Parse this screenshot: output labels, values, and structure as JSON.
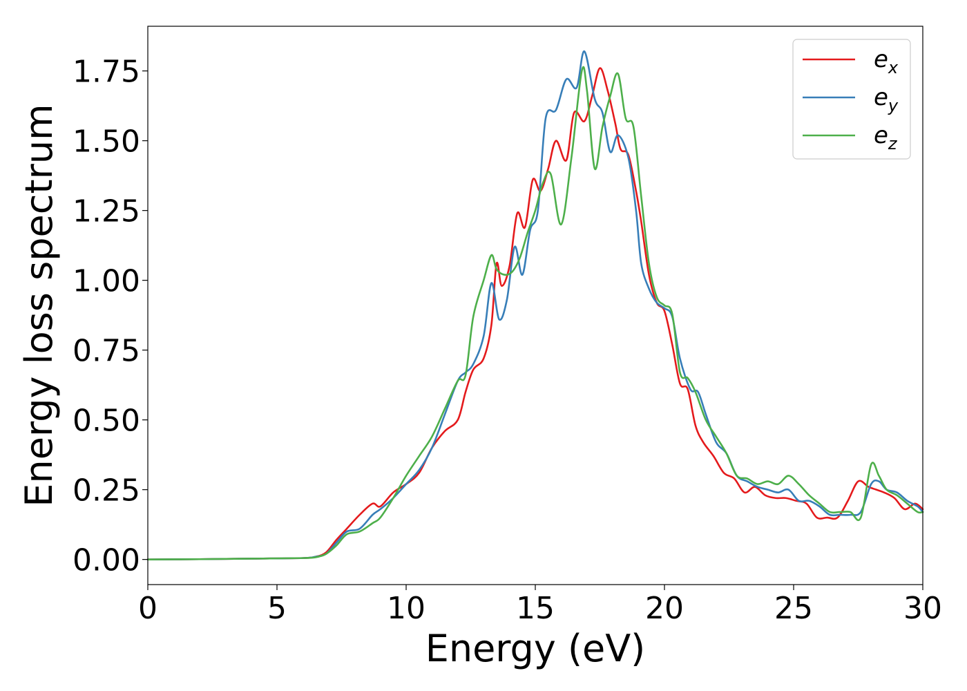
{
  "chart_data": {
    "type": "line",
    "title": "",
    "xlabel": "Energy (eV)",
    "ylabel": "Energy loss spectrum",
    "xlim": [
      0,
      30
    ],
    "ylim": [
      -0.09,
      1.91
    ],
    "xticks": [
      0,
      5,
      10,
      15,
      20,
      25,
      30
    ],
    "xtick_labels": [
      "0",
      "5",
      "10",
      "15",
      "20",
      "25",
      "30"
    ],
    "yticks": [
      0.0,
      0.25,
      0.5,
      0.75,
      1.0,
      1.25,
      1.5,
      1.75
    ],
    "ytick_labels": [
      "0.00",
      "0.25",
      "0.50",
      "0.75",
      "1.00",
      "1.25",
      "1.50",
      "1.75"
    ],
    "grid": false,
    "legend_position": "top-right",
    "series": [
      {
        "name": "x",
        "legend_base": "e",
        "legend_sub": "x",
        "color": "#e41a1c",
        "x": [
          0,
          2,
          4,
          6,
          6.5,
          6.9,
          7.3,
          7.7,
          8.2,
          8.7,
          9.0,
          9.5,
          10.0,
          10.5,
          11.0,
          11.5,
          12.0,
          12.3,
          12.6,
          13.0,
          13.3,
          13.5,
          13.7,
          14.0,
          14.3,
          14.6,
          14.9,
          15.2,
          15.5,
          15.8,
          16.2,
          16.5,
          16.9,
          17.2,
          17.5,
          17.8,
          18.1,
          18.3,
          18.6,
          18.9,
          19.1,
          19.4,
          19.7,
          20.0,
          20.3,
          20.6,
          20.9,
          21.2,
          21.5,
          21.9,
          22.3,
          22.7,
          23.1,
          23.5,
          23.9,
          24.3,
          24.7,
          25.1,
          25.5,
          25.9,
          26.3,
          26.7,
          27.1,
          27.5,
          27.9,
          28.2,
          28.5,
          28.9,
          29.3,
          29.7,
          30.0
        ],
        "values": [
          0,
          0.001,
          0.003,
          0.005,
          0.01,
          0.025,
          0.07,
          0.11,
          0.16,
          0.2,
          0.19,
          0.24,
          0.27,
          0.31,
          0.4,
          0.46,
          0.5,
          0.6,
          0.68,
          0.72,
          0.84,
          1.06,
          0.98,
          1.05,
          1.24,
          1.19,
          1.36,
          1.32,
          1.4,
          1.5,
          1.43,
          1.6,
          1.57,
          1.66,
          1.76,
          1.68,
          1.56,
          1.47,
          1.45,
          1.32,
          1.21,
          1.02,
          0.92,
          0.89,
          0.77,
          0.63,
          0.61,
          0.48,
          0.42,
          0.37,
          0.31,
          0.29,
          0.24,
          0.26,
          0.23,
          0.22,
          0.22,
          0.21,
          0.2,
          0.15,
          0.15,
          0.15,
          0.21,
          0.28,
          0.26,
          0.25,
          0.24,
          0.22,
          0.18,
          0.2,
          0.18
        ]
      },
      {
        "name": "y",
        "legend_base": "e",
        "legend_sub": "y",
        "color": "#377eb8",
        "x": [
          0,
          2,
          4,
          6,
          6.5,
          6.9,
          7.3,
          7.7,
          8.2,
          8.7,
          9.0,
          9.5,
          10.0,
          10.5,
          11.0,
          11.5,
          12.0,
          12.3,
          12.6,
          13.0,
          13.3,
          13.6,
          13.9,
          14.2,
          14.5,
          14.8,
          15.1,
          15.4,
          15.8,
          16.2,
          16.6,
          16.9,
          17.3,
          17.6,
          17.9,
          18.2,
          18.6,
          18.9,
          19.1,
          19.4,
          19.7,
          20.0,
          20.3,
          20.6,
          21.0,
          21.3,
          21.6,
          22.0,
          22.4,
          22.8,
          23.2,
          23.6,
          24.0,
          24.4,
          24.8,
          25.2,
          25.6,
          26.0,
          26.4,
          26.8,
          27.2,
          27.6,
          28.0,
          28.3,
          28.6,
          29.0,
          29.4,
          29.8,
          30.0
        ],
        "values": [
          0,
          0.001,
          0.003,
          0.005,
          0.01,
          0.02,
          0.06,
          0.1,
          0.11,
          0.16,
          0.18,
          0.22,
          0.27,
          0.32,
          0.4,
          0.52,
          0.64,
          0.67,
          0.7,
          0.8,
          0.99,
          0.86,
          0.93,
          1.12,
          1.02,
          1.18,
          1.25,
          1.58,
          1.61,
          1.72,
          1.69,
          1.82,
          1.65,
          1.6,
          1.46,
          1.52,
          1.44,
          1.25,
          1.06,
          0.97,
          0.92,
          0.9,
          0.87,
          0.72,
          0.61,
          0.6,
          0.52,
          0.42,
          0.38,
          0.3,
          0.28,
          0.26,
          0.25,
          0.24,
          0.25,
          0.21,
          0.21,
          0.19,
          0.16,
          0.16,
          0.16,
          0.17,
          0.27,
          0.28,
          0.25,
          0.24,
          0.21,
          0.19,
          0.17
        ]
      },
      {
        "name": "z",
        "legend_base": "e",
        "legend_sub": "z",
        "color": "#4daf4a",
        "x": [
          0,
          2,
          4,
          6,
          6.5,
          6.9,
          7.3,
          7.7,
          8.2,
          8.7,
          9.0,
          9.5,
          10.0,
          10.5,
          11.0,
          11.5,
          12.0,
          12.3,
          12.6,
          13.0,
          13.3,
          13.5,
          13.8,
          14.1,
          14.4,
          14.7,
          15.0,
          15.3,
          15.6,
          16.0,
          16.4,
          16.8,
          17.0,
          17.3,
          17.6,
          17.9,
          18.2,
          18.5,
          18.8,
          19.1,
          19.4,
          19.7,
          20.0,
          20.3,
          20.6,
          20.9,
          21.2,
          21.6,
          22.0,
          22.4,
          22.8,
          23.2,
          23.6,
          24.0,
          24.4,
          24.8,
          25.2,
          25.6,
          26.0,
          26.4,
          26.8,
          27.2,
          27.6,
          28.0,
          28.3,
          28.6,
          29.0,
          29.4,
          29.8,
          30.0
        ],
        "values": [
          0,
          0.001,
          0.003,
          0.005,
          0.008,
          0.02,
          0.05,
          0.09,
          0.1,
          0.13,
          0.15,
          0.22,
          0.3,
          0.37,
          0.44,
          0.54,
          0.64,
          0.66,
          0.87,
          1.0,
          1.09,
          1.04,
          1.02,
          1.03,
          1.08,
          1.17,
          1.25,
          1.35,
          1.38,
          1.2,
          1.44,
          1.75,
          1.68,
          1.4,
          1.55,
          1.66,
          1.74,
          1.58,
          1.55,
          1.3,
          1.06,
          0.94,
          0.91,
          0.88,
          0.67,
          0.65,
          0.6,
          0.5,
          0.44,
          0.38,
          0.3,
          0.29,
          0.27,
          0.28,
          0.27,
          0.3,
          0.27,
          0.23,
          0.2,
          0.17,
          0.17,
          0.17,
          0.15,
          0.34,
          0.3,
          0.25,
          0.23,
          0.2,
          0.17,
          0.17
        ]
      }
    ]
  }
}
